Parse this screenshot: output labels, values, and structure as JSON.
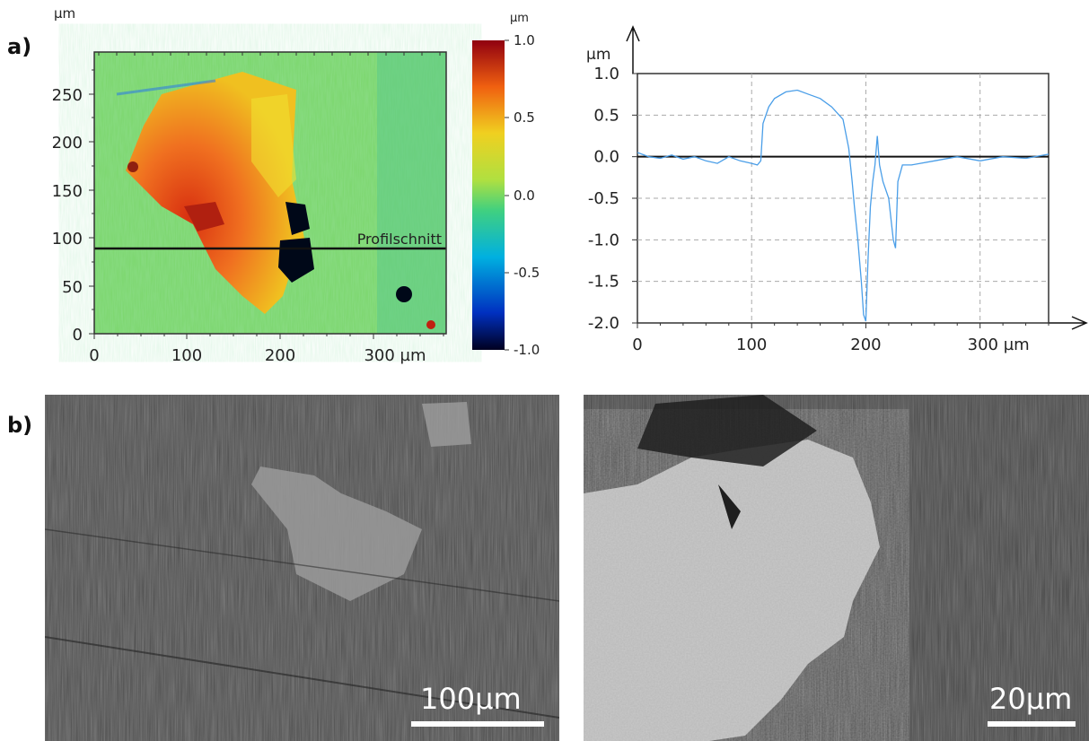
{
  "panel_labels": {
    "a": "a)",
    "b": "b)"
  },
  "heightmap": {
    "unit_x": "µm",
    "unit_y": "µm",
    "colorbar_unit": "µm",
    "profile_label": "Profilschnitt",
    "x_ticks": [
      "0",
      "100",
      "200",
      "300 µm"
    ],
    "y_ticks": [
      "0",
      "50",
      "100",
      "150",
      "200",
      "250"
    ],
    "colorbar_ticks": [
      "1.0",
      "0.5",
      "0.0",
      "-0.5",
      "-1.0"
    ],
    "colors": {
      "low": "#000030",
      "mid": "#80e060",
      "high": "#a01010"
    }
  },
  "chart_data": {
    "type": "line",
    "title": "",
    "xlabel": "µm",
    "ylabel": "µm",
    "xlim": [
      0,
      360
    ],
    "ylim": [
      -2.0,
      1.0
    ],
    "x_ticks": [
      "0",
      "100",
      "200",
      "300 µm"
    ],
    "y_ticks": [
      "1.0",
      "0.5",
      "0.0",
      "-0.5",
      "-1.0",
      "-1.5",
      "-2.0"
    ],
    "grid": true,
    "line_color": "#4a9ee8",
    "series": [
      {
        "x": [
          0,
          10,
          20,
          30,
          40,
          50,
          60,
          70,
          80,
          90,
          100,
          105,
          108,
          110,
          115,
          120,
          130,
          140,
          150,
          160,
          170,
          180,
          185,
          188,
          190,
          193,
          196,
          198,
          200,
          202,
          204,
          206,
          208,
          210,
          212,
          215,
          220,
          224,
          226,
          228,
          232,
          240,
          260,
          280,
          300,
          320,
          340,
          360
        ],
        "y": [
          0.05,
          0.0,
          -0.02,
          0.02,
          -0.03,
          0.0,
          -0.05,
          -0.08,
          0.0,
          -0.05,
          -0.08,
          -0.1,
          -0.05,
          0.4,
          0.6,
          0.7,
          0.78,
          0.8,
          0.75,
          0.7,
          0.6,
          0.45,
          0.1,
          -0.3,
          -0.6,
          -1.0,
          -1.5,
          -1.9,
          -1.98,
          -1.2,
          -0.6,
          -0.3,
          -0.1,
          0.25,
          -0.1,
          -0.3,
          -0.5,
          -1.0,
          -1.1,
          -0.3,
          -0.1,
          -0.1,
          -0.05,
          0.0,
          -0.05,
          0.0,
          -0.02,
          0.03
        ]
      }
    ]
  },
  "sem": {
    "left_scale": "100µm",
    "right_scale": "20µm"
  }
}
